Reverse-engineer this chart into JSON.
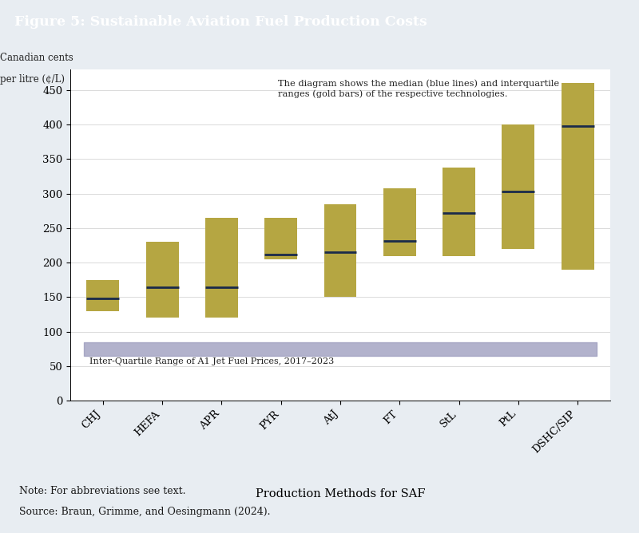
{
  "title": "Figure 5: Sustainable Aviation Fuel Production Costs",
  "ylabel_line1": "Canadian cents",
  "ylabel_line2": "per litre (¢/L)",
  "xlabel": "Production Methods for SAF",
  "categories": [
    "CHJ",
    "HEFA",
    "APR",
    "PYR",
    "AtJ",
    "FT",
    "StL",
    "PtL",
    "DSHC/SIP"
  ],
  "q1": [
    130,
    120,
    120,
    205,
    150,
    210,
    210,
    220,
    190
  ],
  "median": [
    148,
    165,
    165,
    212,
    215,
    232,
    272,
    303,
    398
  ],
  "q3": [
    175,
    230,
    265,
    265,
    285,
    308,
    338,
    400,
    460
  ],
  "bar_color": "#B5A642",
  "median_color": "#1a2a4a",
  "jet_fuel_low": 65,
  "jet_fuel_high": 85,
  "jet_fuel_color": "#9999BB",
  "jet_fuel_alpha": 0.75,
  "jet_fuel_label": "Inter-Quartile Range of A1 Jet Fuel Prices, 2017–2023",
  "annotation": "The diagram shows the median (blue lines) and interquartile\nranges (gold bars) of the respective technologies.",
  "ylim": [
    0,
    480
  ],
  "yticks": [
    0,
    50,
    100,
    150,
    200,
    250,
    300,
    350,
    400,
    450
  ],
  "header_bg": "#1d3461",
  "header_text_color": "#ffffff",
  "footer_bg": "#9aa4b2",
  "note_line1": "Note: For abbreviations see text.",
  "note_line2": "Source: Braun, Grimme, and Oesingmann (2024).",
  "outer_bg": "#e8edf2",
  "chart_bg": "#ffffff",
  "bar_width": 0.55
}
